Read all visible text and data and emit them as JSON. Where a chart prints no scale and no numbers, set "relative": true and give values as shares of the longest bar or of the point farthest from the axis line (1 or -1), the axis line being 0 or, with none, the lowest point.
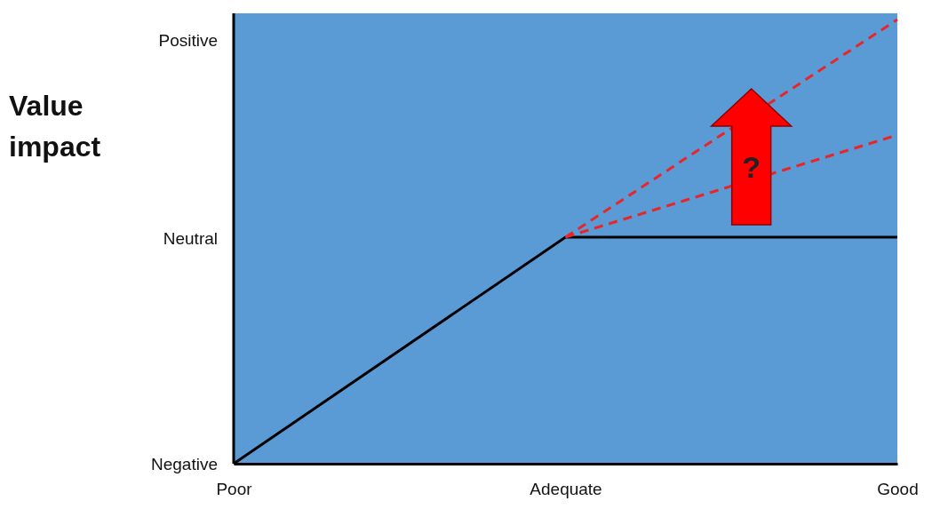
{
  "chart_data": {
    "type": "line",
    "ylabel": "Value impact",
    "relative": true,
    "categories": [
      "Poor",
      "Adequate",
      "Good"
    ],
    "series": [
      {
        "color": "#000000",
        "line_style": "solid",
        "values": [
          0,
          0.51,
          0.51
        ]
      },
      {
        "color": "#e8262a",
        "line_style": "dashed",
        "values": [
          null,
          0.51,
          1
        ]
      },
      {
        "color": "#e8262a",
        "line_style": "dashed",
        "values": [
          null,
          0.51,
          0.74
        ]
      }
    ],
    "annotations": [
      "Negative",
      "Neutral",
      "Positive",
      "?"
    ]
  }
}
